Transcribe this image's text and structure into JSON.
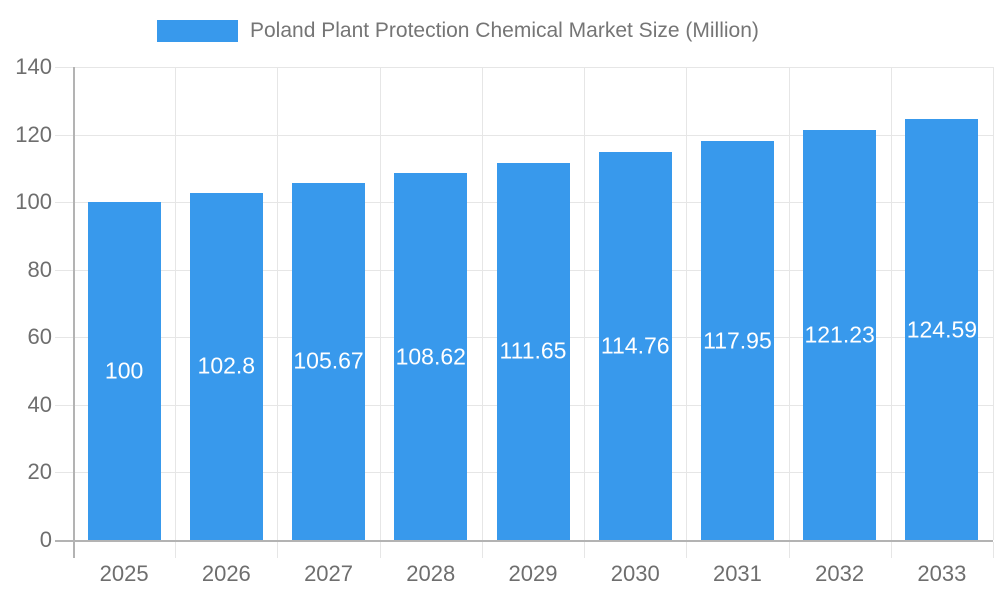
{
  "legend": {
    "label": "Poland Plant Protection Chemical Market Size (Million)"
  },
  "chart_data": {
    "type": "bar",
    "title": "Poland Plant Protection Chemical Market Size (Million)",
    "categories": [
      "2025",
      "2026",
      "2027",
      "2028",
      "2029",
      "2030",
      "2031",
      "2032",
      "2033"
    ],
    "values": [
      100,
      102.8,
      105.67,
      108.62,
      111.65,
      114.76,
      117.95,
      121.23,
      124.59
    ],
    "bar_labels": [
      "100",
      "102.8",
      "105.67",
      "108.62",
      "111.65",
      "114.76",
      "117.95",
      "121.23",
      "124.59"
    ],
    "series_name": "Poland Plant Protection Chemical Market Size (Million)",
    "xlabel": "",
    "ylabel": "",
    "ylim": [
      0,
      140
    ],
    "yticks": [
      0,
      20,
      40,
      60,
      80,
      100,
      120,
      140
    ],
    "grid": true,
    "legend_position": "top-center",
    "colors": {
      "bar": "#3899EC",
      "bar_label_text": "#ffffff",
      "axis_text": "#6e6e6e",
      "legend_text": "#757575",
      "gridline": "#e6e6e6",
      "axis_line": "#b3b3b3"
    }
  }
}
